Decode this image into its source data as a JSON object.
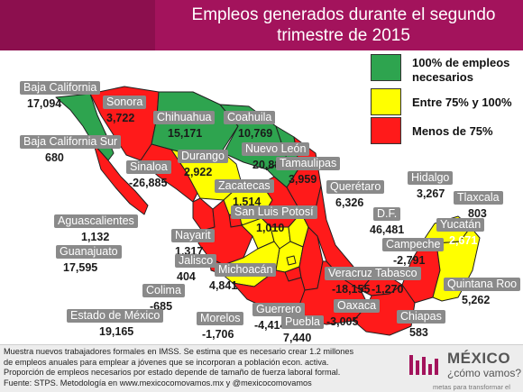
{
  "title": {
    "line1": "Empleos generados durante el segundo",
    "line2": "trimestre de 2015"
  },
  "legend": [
    {
      "label": "100% de empleos necesarios",
      "line1": "100% de empleos",
      "line2": "necesarios",
      "color": "#2ea44f"
    },
    {
      "label": "Entre 75% y 100%",
      "line1": "Entre 75% y 100%",
      "line2": "",
      "color": "#ffff00"
    },
    {
      "label": "Menos de 75%",
      "line1": "Menos de 75%",
      "line2": "",
      "color": "#ff1a1a"
    }
  ],
  "states": {
    "baja_california": {
      "name": "Baja California",
      "value": "17,094"
    },
    "sonora": {
      "name": "Sonora",
      "value": "3,722"
    },
    "chihuahua": {
      "name": "Chihuahua",
      "value": "15,171"
    },
    "coahuila": {
      "name": "Coahuila",
      "value": "10,769"
    },
    "baja_california_sur": {
      "name": "Baja California Sur",
      "value": "680"
    },
    "nuevo_leon": {
      "name": "Nuevo León",
      "value": "20,880"
    },
    "durango": {
      "name": "Durango",
      "value": "2,922"
    },
    "sinaloa": {
      "name": "Sinaloa",
      "value": "-26,885"
    },
    "tamaulipas": {
      "name": "Tamaulipas",
      "value": "3,959"
    },
    "zacatecas": {
      "name": "Zacatecas",
      "value": "1,514"
    },
    "queretaro": {
      "name": "Querétaro",
      "value": "6,326"
    },
    "hidalgo": {
      "name": "Hidalgo",
      "value": "3,267"
    },
    "tlaxcala": {
      "name": "Tlaxcala",
      "value": "803"
    },
    "aguascalientes": {
      "name": "Aguascalientes",
      "value": "1,132"
    },
    "san_luis_potosi": {
      "name": "San Luis Potosí",
      "value": "1,010"
    },
    "df": {
      "name": "D.F.",
      "value": "46,481"
    },
    "yucatan": {
      "name": "Yucatán",
      "value": "2,671"
    },
    "nayarit": {
      "name": "Nayarit",
      "value": "1,317"
    },
    "campeche": {
      "name": "Campeche",
      "value": "-2,791"
    },
    "guanajuato": {
      "name": "Guanajuato",
      "value": "17,595"
    },
    "jalisco": {
      "name": "Jalisco",
      "value": "404"
    },
    "veracruz": {
      "name": "Veracruz",
      "value": "-18,155"
    },
    "tabasco": {
      "name": "Tabasco",
      "value": "-1,270"
    },
    "michoacan": {
      "name": "Michoacán",
      "value": "4,841"
    },
    "colima": {
      "name": "Colima",
      "value": "-685"
    },
    "quintana_roo": {
      "name": "Quintana Roo",
      "value": "5,262"
    },
    "oaxaca": {
      "name": "Oaxaca",
      "value": "-3,005"
    },
    "estado_de_mexico": {
      "name": "Estado de México",
      "value": "19,165"
    },
    "morelos": {
      "name": "Morelos",
      "value": "-1,706"
    },
    "guerrero": {
      "name": "Guerrero",
      "value": "-4,414"
    },
    "puebla": {
      "name": "Puebla",
      "value": "7,440"
    },
    "chiapas": {
      "name": "Chiapas",
      "value": "583"
    }
  },
  "footer": {
    "line1": "Muestra nuevos trabajadores formales en IMSS. Se estima que es necesario crear 1.2 millones",
    "line2": "de empleos anuales para emplear a jóvenes que se incorporan a población econ. activa.",
    "line3": "Proporción de empleos necesarios por estado depende de tamaño de fuerza laboral formal.",
    "line4": "Fuente: STPS. Metodología en www.mexicocomovamos.mx y @mexicocomovamos"
  },
  "logo": {
    "name": "MÉXICO",
    "tagline": "¿cómo vamos?",
    "slogan": "metas para transformar el país"
  },
  "colors": {
    "header": "#a3135c",
    "green": "#2ea44f",
    "yellow": "#ffff00",
    "red": "#ff1a1a",
    "label_bg": "#8a8a8a"
  }
}
